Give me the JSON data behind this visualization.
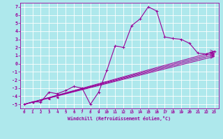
{
  "xlabel": "Windchill (Refroidissement éolien,°C)",
  "bg_color": "#aee8ec",
  "grid_color": "#ffffff",
  "line_color": "#990099",
  "xlim": [
    -0.5,
    23.5
  ],
  "ylim": [
    -5.5,
    7.5
  ],
  "xticks": [
    0,
    1,
    2,
    3,
    4,
    5,
    6,
    7,
    8,
    9,
    10,
    11,
    12,
    13,
    14,
    15,
    16,
    17,
    18,
    19,
    20,
    21,
    22,
    23
  ],
  "yticks": [
    -5,
    -4,
    -3,
    -2,
    -1,
    0,
    1,
    2,
    3,
    4,
    5,
    6,
    7
  ],
  "main_line": [
    0,
    -5,
    1,
    -4.7,
    2,
    -4.7,
    3,
    -3.5,
    4,
    -3.7,
    5,
    -3.3,
    6,
    -2.8,
    7,
    -3.0,
    8,
    -5.0,
    9,
    -3.5,
    10,
    -0.8,
    11,
    2.2,
    12,
    2.0,
    13,
    4.7,
    14,
    5.5,
    15,
    7.0,
    16,
    6.5,
    17,
    3.3,
    18,
    3.1,
    19,
    3.0,
    20,
    2.5,
    21,
    1.3,
    22,
    1.2,
    23,
    1.5
  ],
  "straight_lines": [
    [
      0,
      -5.0,
      23,
      1.5
    ],
    [
      0,
      -5.0,
      23,
      1.3
    ],
    [
      0,
      -5.0,
      23,
      1.1
    ],
    [
      0,
      -5.0,
      23,
      0.9
    ]
  ],
  "trend_markers": [
    [
      6,
      -2.8
    ],
    [
      7,
      -2.7
    ],
    [
      9,
      -2.3
    ],
    [
      10,
      -1.8
    ],
    [
      17,
      3.1
    ],
    [
      18,
      3.05
    ],
    [
      19,
      3.0
    ],
    [
      20,
      2.95
    ],
    [
      21,
      1.3
    ],
    [
      22,
      1.2
    ],
    [
      23,
      1.5
    ]
  ]
}
